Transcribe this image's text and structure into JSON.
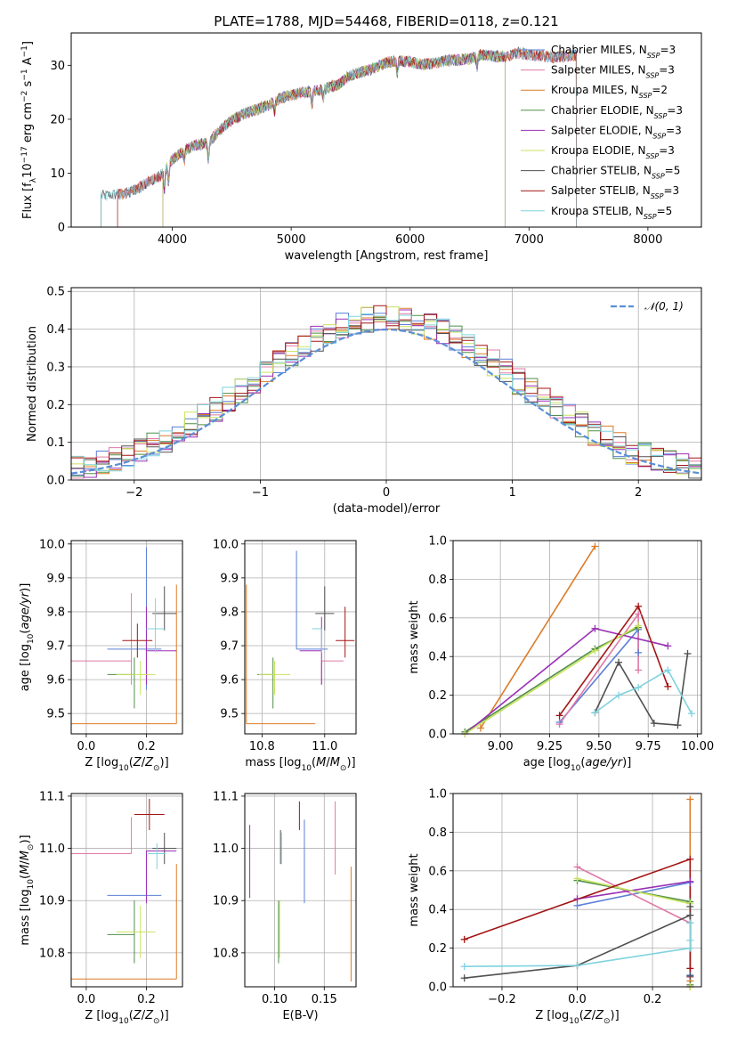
{
  "title": "PLATE=1788, MJD=54468, FIBERID=0118, z=0.121",
  "colors": {
    "Chabrier MILES": "#5b7fd6",
    "Salpeter MILES": "#e07aa8",
    "Kroupa MILES": "#dc7b27",
    "Chabrier ELODIE": "#4f8f48",
    "Salpeter ELODIE": "#9b30b5",
    "Kroupa ELODIE": "#c9e35e",
    "Chabrier STELIB": "#505050",
    "Salpeter STELIB": "#a31515",
    "Kroupa STELIB": "#7fd3de"
  },
  "legend": [
    {
      "model": "Chabrier MILES",
      "label": "Chabrier MILES, N_SSP=3"
    },
    {
      "model": "Salpeter MILES",
      "label": "Salpeter MILES, N_SSP=3"
    },
    {
      "model": "Kroupa MILES",
      "label": "Kroupa MILES, N_SSP=2"
    },
    {
      "model": "Chabrier ELODIE",
      "label": "Chabrier ELODIE, N_SSP=3"
    },
    {
      "model": "Salpeter ELODIE",
      "label": "Salpeter ELODIE, N_SSP=3"
    },
    {
      "model": "Kroupa ELODIE",
      "label": "Kroupa ELODIE, N_SSP=3"
    },
    {
      "model": "Chabrier STELIB",
      "label": "Chabrier STELIB, N_SSP=5"
    },
    {
      "model": "Salpeter STELIB",
      "label": "Salpeter STELIB, N_SSP=3"
    },
    {
      "model": "Kroupa STELIB",
      "label": "Kroupa STELIB, N_SSP=5"
    }
  ],
  "chart_data": [
    {
      "id": "spectrum",
      "type": "line",
      "xlabel": "wavelength [Angstrom, rest frame]",
      "ylabel": "Flux [f_λ 10^-17 erg cm^-2 s^-1 A^-1]",
      "xlim": [
        3150,
        8450
      ],
      "ylim": [
        0,
        36
      ],
      "xticks": [
        4000,
        5000,
        6000,
        7000,
        8000
      ],
      "yticks": [
        0,
        10,
        20,
        30
      ],
      "grid": false,
      "legend_position": "top-right",
      "continuum": [
        [
          3400,
          5.8
        ],
        [
          3600,
          6.2
        ],
        [
          3700,
          7.0
        ],
        [
          3800,
          8.5
        ],
        [
          3900,
          9.5
        ],
        [
          4000,
          12.5
        ],
        [
          4100,
          14.2
        ],
        [
          4200,
          15.3
        ],
        [
          4300,
          15.5
        ],
        [
          4400,
          18.0
        ],
        [
          4500,
          19.8
        ],
        [
          4600,
          21.0
        ],
        [
          4700,
          21.7
        ],
        [
          4800,
          22.5
        ],
        [
          4900,
          23.8
        ],
        [
          5000,
          24.5
        ],
        [
          5100,
          25.0
        ],
        [
          5200,
          25.2
        ],
        [
          5300,
          25.8
        ],
        [
          5400,
          26.5
        ],
        [
          5500,
          28.2
        ],
        [
          5600,
          28.8
        ],
        [
          5700,
          29.5
        ],
        [
          5800,
          30.5
        ],
        [
          5900,
          30.8
        ],
        [
          6000,
          30.6
        ],
        [
          6100,
          30.2
        ],
        [
          6200,
          30.3
        ],
        [
          6300,
          30.9
        ],
        [
          6400,
          31.0
        ],
        [
          6500,
          31.2
        ],
        [
          6600,
          32.0
        ],
        [
          6700,
          31.7
        ],
        [
          6800,
          31.5
        ],
        [
          6900,
          32.3
        ],
        [
          7000,
          32.0
        ],
        [
          7200,
          31.5
        ],
        [
          7400,
          31.8
        ]
      ],
      "model_ranges": [
        {
          "model": "Chabrier MILES",
          "range": [
            3540,
            7400
          ]
        },
        {
          "model": "Salpeter MILES",
          "range": [
            3540,
            7400
          ]
        },
        {
          "model": "Kroupa MILES",
          "range": [
            3540,
            7400
          ]
        },
        {
          "model": "Chabrier ELODIE",
          "range": [
            3920,
            6800
          ]
        },
        {
          "model": "Salpeter ELODIE",
          "range": [
            3920,
            6800
          ]
        },
        {
          "model": "Kroupa ELODIE",
          "range": [
            3920,
            6800
          ]
        },
        {
          "model": "Chabrier STELIB",
          "range": [
            3400,
            7400
          ]
        },
        {
          "model": "Salpeter STELIB",
          "range": [
            3540,
            7400
          ]
        },
        {
          "model": "Kroupa STELIB",
          "range": [
            3400,
            7400
          ]
        }
      ]
    },
    {
      "id": "residuals",
      "type": "line",
      "xlabel": "(data-model)/error",
      "ylabel": "Normed distribution",
      "xlim": [
        -2.5,
        2.5
      ],
      "ylim": [
        0,
        0.51
      ],
      "xticks": [
        -2,
        -1,
        0,
        1,
        2
      ],
      "yticks": [
        0.0,
        0.1,
        0.2,
        0.3,
        0.4,
        0.5
      ],
      "grid": true,
      "legend_position": "top-right",
      "reference_label": "N(0,1)",
      "bin_width": 0.1
    },
    {
      "id": "age_vs_Z",
      "type": "scatter",
      "xlabel": "Z [log10(Z/Z⊙)]",
      "ylabel": "age [log10(age/yr)]",
      "xlim": [
        -0.05,
        0.32
      ],
      "ylim": [
        9.44,
        10.01
      ],
      "xticks": [
        0.0,
        0.2
      ],
      "yticks": [
        9.5,
        9.6,
        9.7,
        9.8,
        9.9,
        10.0
      ],
      "grid": true,
      "points": [
        {
          "model": "Chabrier MILES",
          "x": 0.2,
          "xerr": [
            0.13,
            0.05
          ],
          "y": 9.69,
          "yerr": [
            0.12,
            0.3
          ]
        },
        {
          "model": "Salpeter MILES",
          "x": 0.15,
          "xerr": [
            0.25,
            0.0
          ],
          "y": 9.655,
          "yerr": [
            0.07,
            0.2
          ]
        },
        {
          "model": "Kroupa MILES",
          "x": 0.3,
          "xerr": [
            0.35,
            0.0
          ],
          "y": 9.47,
          "yerr": [
            0.0,
            0.41
          ]
        },
        {
          "model": "Chabrier ELODIE",
          "x": 0.16,
          "xerr": [
            0.09,
            0.0
          ],
          "y": 9.615,
          "yerr": [
            0.1,
            0.05
          ]
        },
        {
          "model": "Salpeter ELODIE",
          "x": 0.2,
          "xerr": [
            0.0,
            0.1
          ],
          "y": 9.685,
          "yerr": [
            0.1,
            0.13
          ]
        },
        {
          "model": "Kroupa ELODIE",
          "x": 0.18,
          "xerr": [
            0.08,
            0.05
          ],
          "y": 9.615,
          "yerr": [
            0.06,
            0.04
          ]
        },
        {
          "model": "Chabrier STELIB",
          "x": 0.26,
          "xerr": [
            0.04,
            0.04
          ],
          "y": 9.795,
          "yerr": [
            0.05,
            0.08
          ]
        },
        {
          "model": "Salpeter STELIB",
          "x": 0.17,
          "xerr": [
            0.05,
            0.05
          ],
          "y": 9.715,
          "yerr": [
            0.05,
            0.05
          ]
        },
        {
          "model": "Kroupa STELIB",
          "x": 0.23,
          "xerr": [
            0.03,
            0.03
          ],
          "y": 9.75,
          "yerr": [
            0.07,
            0.09
          ]
        }
      ]
    },
    {
      "id": "age_vs_mass",
      "type": "scatter",
      "xlabel": "mass [log10(M/M⊙)]",
      "ylabel": "",
      "xlim": [
        10.745,
        11.1
      ],
      "ylim": [
        9.44,
        10.01
      ],
      "xticks": [
        10.8,
        11.0
      ],
      "yticks": [
        9.5,
        9.6,
        9.7,
        9.8,
        9.9,
        10.0
      ],
      "grid": true,
      "points": [
        {
          "model": "Chabrier MILES",
          "x": 10.91,
          "xerr": [
            0.0,
            0.1
          ],
          "y": 9.69,
          "yerr": [
            0.0,
            0.29
          ]
        },
        {
          "model": "Salpeter MILES",
          "x": 10.99,
          "xerr": [
            0.0,
            0.07
          ],
          "y": 9.655,
          "yerr": [
            0.07,
            0.0
          ]
        },
        {
          "model": "Kroupa MILES",
          "x": 10.75,
          "xerr": [
            0.0,
            0.22
          ],
          "y": 9.47,
          "yerr": [
            0.0,
            0.41
          ]
        },
        {
          "model": "Chabrier ELODIE",
          "x": 10.835,
          "xerr": [
            0.05,
            0.0
          ],
          "y": 9.615,
          "yerr": [
            0.1,
            0.05
          ]
        },
        {
          "model": "Salpeter ELODIE",
          "x": 10.99,
          "xerr": [
            0.07,
            0.0
          ],
          "y": 9.685,
          "yerr": [
            0.1,
            0.1
          ]
        },
        {
          "model": "Kroupa ELODIE",
          "x": 10.84,
          "xerr": [
            0.05,
            0.05
          ],
          "y": 9.615,
          "yerr": [
            0.06,
            0.04
          ]
        },
        {
          "model": "Chabrier STELIB",
          "x": 11.0,
          "xerr": [
            0.03,
            0.03
          ],
          "y": 9.795,
          "yerr": [
            0.05,
            0.08
          ]
        },
        {
          "model": "Salpeter STELIB",
          "x": 11.065,
          "xerr": [
            0.03,
            0.03
          ],
          "y": 9.715,
          "yerr": [
            0.05,
            0.1
          ]
        },
        {
          "model": "Kroupa STELIB",
          "x": 10.99,
          "xerr": [
            0.03,
            0.0
          ],
          "y": 9.75,
          "yerr": [
            0.07,
            0.0
          ]
        }
      ]
    },
    {
      "id": "mass_weight_vs_age",
      "type": "line",
      "xlabel": "age [log10(age/yr)]",
      "ylabel": "mass weight",
      "xlim": [
        8.76,
        10.02
      ],
      "ylim": [
        0.0,
        1.0
      ],
      "xticks": [
        9.0,
        9.25,
        9.5,
        9.75,
        10.0
      ],
      "yticks": [
        0.0,
        0.2,
        0.4,
        0.6,
        0.8,
        1.0
      ],
      "grid": true,
      "series": [
        {
          "model": "Chabrier MILES",
          "x": [
            9.3,
            9.7,
            9.7
          ],
          "y": [
            0.06,
            0.54,
            0.42
          ]
        },
        {
          "model": "Salpeter MILES",
          "x": [
            9.3,
            9.7,
            9.7
          ],
          "y": [
            0.05,
            0.62,
            0.33
          ]
        },
        {
          "model": "Kroupa MILES",
          "x": [
            8.9,
            9.48
          ],
          "y": [
            0.03,
            0.97
          ]
        },
        {
          "model": "Chabrier ELODIE",
          "x": [
            8.82,
            9.48,
            9.7
          ],
          "y": [
            0.01,
            0.44,
            0.55
          ]
        },
        {
          "model": "Salpeter ELODIE",
          "x": [
            8.82,
            9.48,
            9.85
          ],
          "y": [
            0.0,
            0.545,
            0.455
          ]
        },
        {
          "model": "Kroupa ELODIE",
          "x": [
            8.82,
            9.48,
            9.7
          ],
          "y": [
            0.0,
            0.43,
            0.56
          ]
        },
        {
          "model": "Chabrier STELIB",
          "x": [
            9.48,
            9.6,
            9.78,
            9.9,
            9.95
          ],
          "y": [
            0.11,
            0.37,
            0.055,
            0.045,
            0.415
          ]
        },
        {
          "model": "Salpeter STELIB",
          "x": [
            9.3,
            9.7,
            9.85
          ],
          "y": [
            0.095,
            0.66,
            0.245
          ]
        },
        {
          "model": "Kroupa STELIB",
          "x": [
            9.48,
            9.6,
            9.7,
            9.85,
            9.97
          ],
          "y": [
            0.11,
            0.2,
            0.24,
            0.33,
            0.105
          ]
        }
      ]
    },
    {
      "id": "mass_vs_Z",
      "type": "scatter",
      "xlabel": "Z [log10(Z/Z⊙)]",
      "ylabel": "mass [log10(M/M⊙)]",
      "xlim": [
        -0.05,
        0.32
      ],
      "ylim": [
        10.735,
        11.105
      ],
      "xticks": [
        0.0,
        0.2
      ],
      "yticks": [
        10.8,
        10.9,
        11.0,
        11.1
      ],
      "grid": true,
      "points": [
        {
          "model": "Chabrier MILES",
          "x": 0.2,
          "xerr": [
            0.13,
            0.05
          ],
          "y": 10.91,
          "yerr": [
            0.0,
            0.08
          ]
        },
        {
          "model": "Salpeter MILES",
          "x": 0.15,
          "xerr": [
            0.25,
            0.0
          ],
          "y": 10.99,
          "yerr": [
            0.0,
            0.07
          ]
        },
        {
          "model": "Kroupa MILES",
          "x": 0.3,
          "xerr": [
            0.35,
            0.0
          ],
          "y": 10.75,
          "yerr": [
            0.0,
            0.22
          ]
        },
        {
          "model": "Chabrier ELODIE",
          "x": 0.16,
          "xerr": [
            0.09,
            0.0
          ],
          "y": 10.835,
          "yerr": [
            0.055,
            0.065
          ]
        },
        {
          "model": "Salpeter ELODIE",
          "x": 0.2,
          "xerr": [
            0.0,
            0.1
          ],
          "y": 10.995,
          "yerr": [
            0.1,
            0.0
          ]
        },
        {
          "model": "Kroupa ELODIE",
          "x": 0.18,
          "xerr": [
            0.08,
            0.05
          ],
          "y": 10.84,
          "yerr": [
            0.05,
            0.05
          ]
        },
        {
          "model": "Chabrier STELIB",
          "x": 0.26,
          "xerr": [
            0.04,
            0.04
          ],
          "y": 11.0,
          "yerr": [
            0.03,
            0.03
          ]
        },
        {
          "model": "Salpeter STELIB",
          "x": 0.21,
          "xerr": [
            0.05,
            0.05
          ],
          "y": 11.065,
          "yerr": [
            0.03,
            0.03
          ]
        },
        {
          "model": "Kroupa STELIB",
          "x": 0.235,
          "xerr": [
            0.03,
            0.03
          ],
          "y": 10.99,
          "yerr": [
            0.03,
            0.02
          ]
        }
      ]
    },
    {
      "id": "mass_vs_EBV",
      "type": "scatter",
      "xlabel": "E(B-V)",
      "ylabel": "",
      "xlim": [
        0.07,
        0.182
      ],
      "ylim": [
        10.735,
        11.105
      ],
      "xticks": [
        0.1,
        0.15
      ],
      "yticks": [
        10.8,
        10.9,
        11.0,
        11.1
      ],
      "grid": true,
      "segments": [
        {
          "model": "Salpeter ELODIE",
          "x": 0.075,
          "y": [
            10.905,
            11.045
          ]
        },
        {
          "model": "Chabrier ELODIE",
          "x": 0.104,
          "y": [
            10.78,
            10.9
          ]
        },
        {
          "model": "Kroupa ELODIE",
          "x": 0.105,
          "y": [
            10.79,
            10.9
          ]
        },
        {
          "model": "Chabrier STELIB",
          "x": 0.106,
          "y": [
            10.97,
            11.035
          ]
        },
        {
          "model": "Kroupa STELIB",
          "x": 0.107,
          "y": [
            10.97,
            11.03
          ]
        },
        {
          "model": "Salpeter STELIB",
          "x": 0.125,
          "y": [
            11.035,
            11.09
          ]
        },
        {
          "model": "Chabrier MILES",
          "x": 0.13,
          "y": [
            10.895,
            11.055
          ]
        },
        {
          "model": "Salpeter MILES",
          "x": 0.161,
          "y": [
            10.95,
            11.09
          ]
        },
        {
          "model": "Kroupa MILES",
          "x": 0.177,
          "y": [
            10.745,
            10.965
          ]
        }
      ]
    },
    {
      "id": "mass_weight_vs_Z",
      "type": "line",
      "xlabel": "Z [log10(Z/Z⊙)]",
      "ylabel": "mass weight",
      "xlim": [
        -0.33,
        0.33
      ],
      "ylim": [
        0.0,
        1.0
      ],
      "xticks": [
        -0.2,
        0.0,
        0.2
      ],
      "yticks": [
        0.0,
        0.2,
        0.4,
        0.6,
        0.8,
        1.0
      ],
      "grid": true,
      "series": [
        {
          "model": "Chabrier MILES",
          "x": [
            0.0,
            0.3,
            0.3
          ],
          "y": [
            0.42,
            0.54,
            0.06
          ]
        },
        {
          "model": "Salpeter MILES",
          "x": [
            0.0,
            0.3,
            0.3
          ],
          "y": [
            0.62,
            0.33,
            0.05
          ]
        },
        {
          "model": "Kroupa MILES",
          "x": [
            0.3,
            0.3
          ],
          "y": [
            0.97,
            0.03
          ]
        },
        {
          "model": "Chabrier ELODIE",
          "x": [
            0.0,
            0.3,
            0.3
          ],
          "y": [
            0.55,
            0.44,
            0.01
          ]
        },
        {
          "model": "Salpeter ELODIE",
          "x": [
            0.0,
            0.3,
            0.3
          ],
          "y": [
            0.455,
            0.545,
            0.0
          ]
        },
        {
          "model": "Kroupa ELODIE",
          "x": [
            0.0,
            0.3,
            0.3
          ],
          "y": [
            0.56,
            0.43,
            0.0
          ]
        },
        {
          "model": "Chabrier STELIB",
          "x": [
            -0.3,
            0.0,
            0.3,
            0.3,
            0.3
          ],
          "y": [
            0.045,
            0.11,
            0.37,
            0.055,
            0.415
          ]
        },
        {
          "model": "Salpeter STELIB",
          "x": [
            -0.3,
            0.3,
            0.3
          ],
          "y": [
            0.245,
            0.66,
            0.095
          ]
        },
        {
          "model": "Kroupa STELIB",
          "x": [
            -0.3,
            0.0,
            0.3,
            0.3,
            0.3
          ],
          "y": [
            0.105,
            0.11,
            0.2,
            0.24,
            0.33
          ]
        }
      ]
    }
  ]
}
